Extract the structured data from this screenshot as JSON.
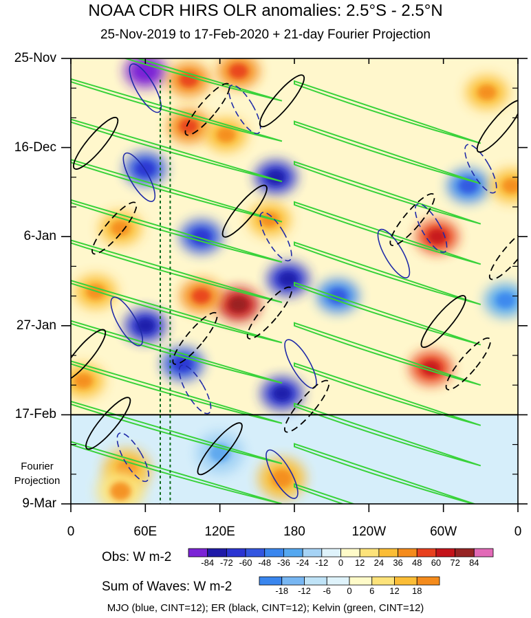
{
  "chart_data": {
    "type": "heatmap",
    "title": "NOAA CDR HIRS OLR anomalies: 2.5°S - 2.5°N",
    "subtitle": "25-Nov-2019 to 17-Feb-2020 + 21-day Fourier Projection",
    "y_tick_labels": [
      "25-Nov",
      "16-Dec",
      "6-Jan",
      "27-Jan",
      "17-Feb",
      "9-Mar"
    ],
    "y_tick_days": [
      0,
      21,
      42,
      63,
      84,
      105
    ],
    "projection_start_day": 84,
    "projection_label": [
      "Fourier",
      "Projection"
    ],
    "x_tick_labels": [
      "0",
      "60E",
      "120E",
      "180",
      "120W",
      "60W",
      "0"
    ],
    "x_tick_lon": [
      0,
      60,
      120,
      180,
      240,
      300,
      360
    ],
    "xlim": [
      0,
      360
    ],
    "ylim": [
      0,
      105
    ],
    "reference_lines_lon": [
      72,
      80
    ],
    "obs_colorbar": {
      "label": "Obs: W m-2",
      "levels": [
        "-84",
        "-72",
        "-60",
        "-48",
        "-36",
        "-24",
        "-12",
        "0",
        "12",
        "24",
        "36",
        "48",
        "60",
        "72",
        "84"
      ],
      "colors": [
        "#7b24d6",
        "#1f1aa8",
        "#2b34d2",
        "#3356e0",
        "#3a86ee",
        "#55a8f0",
        "#a6d3f5",
        "#dff3fb",
        "#fffbc9",
        "#fde37a",
        "#fbbd36",
        "#f48b1c",
        "#e8401e",
        "#c4141a",
        "#962424",
        "#e26ab7"
      ]
    },
    "waves_colorbar": {
      "label": "Sum of Waves: W m-2",
      "levels": [
        "-18",
        "-12",
        "-6",
        "0",
        "6",
        "12",
        "18"
      ],
      "colors": [
        "#3a86ee",
        "#77b6f2",
        "#bfe3f7",
        "#dff3fb",
        "#fffbc9",
        "#fde37a",
        "#fbbd36",
        "#f48b1c"
      ]
    },
    "wave_contours": {
      "mjo": {
        "name": "MJO",
        "color": "#1f2aa8",
        "cint": 12
      },
      "er": {
        "name": "ER",
        "color": "#000000",
        "cint": 12
      },
      "kelvin": {
        "name": "Kelvin",
        "color": "#39d23a",
        "cint": 12
      }
    },
    "anomaly_blobs": [
      {
        "lon": 60,
        "day": 3,
        "value": -84
      },
      {
        "lon": 95,
        "day": 5,
        "value": 48
      },
      {
        "lon": 135,
        "day": 3,
        "value": 48
      },
      {
        "lon": 60,
        "day": 26,
        "value": -48
      },
      {
        "lon": 95,
        "day": 16,
        "value": 48
      },
      {
        "lon": 125,
        "day": 18,
        "value": 36
      },
      {
        "lon": 165,
        "day": 28,
        "value": -60
      },
      {
        "lon": 40,
        "day": 40,
        "value": 36
      },
      {
        "lon": 105,
        "day": 42,
        "value": -48
      },
      {
        "lon": 160,
        "day": 38,
        "value": 36
      },
      {
        "lon": 175,
        "day": 52,
        "value": -60
      },
      {
        "lon": 135,
        "day": 58,
        "value": 72
      },
      {
        "lon": 105,
        "day": 56,
        "value": 48
      },
      {
        "lon": 60,
        "day": 63,
        "value": -60
      },
      {
        "lon": 20,
        "day": 55,
        "value": 36
      },
      {
        "lon": 90,
        "day": 72,
        "value": -48
      },
      {
        "lon": 170,
        "day": 79,
        "value": -60
      },
      {
        "lon": 10,
        "day": 76,
        "value": 36
      },
      {
        "lon": 215,
        "day": 56,
        "value": -36
      },
      {
        "lon": 295,
        "day": 42,
        "value": 60
      },
      {
        "lon": 290,
        "day": 73,
        "value": 60
      },
      {
        "lon": 335,
        "day": 8,
        "value": 36
      },
      {
        "lon": 320,
        "day": 30,
        "value": -36
      },
      {
        "lon": 355,
        "day": 30,
        "value": 36
      },
      {
        "lon": 350,
        "day": 57,
        "value": -24
      },
      {
        "lon": 45,
        "day": 97,
        "value": 18
      },
      {
        "lon": 170,
        "day": 99,
        "value": 18
      },
      {
        "lon": 120,
        "day": 93,
        "value": -12
      },
      {
        "lon": 40,
        "day": 102,
        "value": 12
      }
    ]
  },
  "footer": "MJO (blue, CINT=12); ER (black, CINT=12); Kelvin (green, CINT=12)"
}
